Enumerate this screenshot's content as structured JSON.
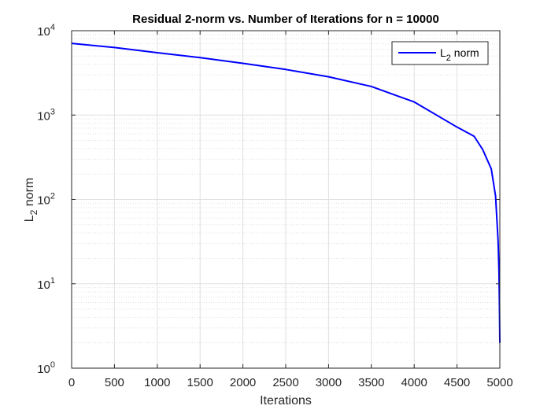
{
  "chart_data": {
    "type": "line",
    "title": "Residual 2-norm vs. Number of Iterations for n = 10000",
    "xlabel": "Iterations",
    "ylabel": {
      "base": "L",
      "sub": "2",
      "rest": " norm"
    },
    "xlim": [
      0,
      5000
    ],
    "ylim": [
      1,
      10000
    ],
    "yscale": "log",
    "grid": true,
    "minor_grid": true,
    "legend_position": "top-right",
    "x_ticks": [
      0,
      500,
      1000,
      1500,
      2000,
      2500,
      3000,
      3500,
      4000,
      4500,
      5000
    ],
    "x_tick_labels": [
      "0",
      "500",
      "1000",
      "1500",
      "2000",
      "2500",
      "3000",
      "3500",
      "4000",
      "4500",
      "5000"
    ],
    "y_ticks": [
      {
        "value": 1,
        "base": "10",
        "exp": "0"
      },
      {
        "value": 10,
        "base": "10",
        "exp": "1"
      },
      {
        "value": 100,
        "base": "10",
        "exp": "2"
      },
      {
        "value": 1000,
        "base": "10",
        "exp": "3"
      },
      {
        "value": 10000,
        "base": "10",
        "exp": "4"
      }
    ],
    "series": [
      {
        "name": {
          "base": "L",
          "sub": "2",
          "rest": " norm"
        },
        "color": "#0000ff",
        "x": [
          0,
          500,
          1000,
          1500,
          2000,
          2500,
          3000,
          3500,
          4000,
          4500,
          4700,
          4800,
          4900,
          4950,
          4980,
          4990,
          4995,
          5000
        ],
        "y": [
          7070,
          6320,
          5480,
          4790,
          4100,
          3470,
          2840,
          2180,
          1430,
          720,
          560,
          390,
          230,
          110,
          32,
          14,
          6,
          2
        ]
      }
    ]
  },
  "colors": {
    "grid": "#dfdfdf",
    "axis": "#262626",
    "background": "#ffffff"
  }
}
